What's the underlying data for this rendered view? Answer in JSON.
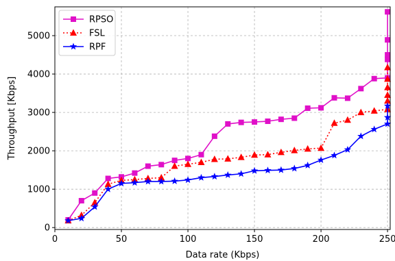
{
  "chart_data": {
    "type": "line",
    "xlabel": "Data rate (Kbps)",
    "ylabel": "Throughput [Kbps]",
    "xlim": [
      0,
      252
    ],
    "ylim": [
      -50,
      5750
    ],
    "xticks": [
      "0",
      "50",
      "100",
      "150",
      "200",
      "250"
    ],
    "xtick_values": [
      0,
      50,
      100,
      150,
      200,
      250
    ],
    "yticks": [
      "0",
      "1000",
      "2000",
      "3000",
      "4000",
      "5000"
    ],
    "ytick_values": [
      0,
      1000,
      2000,
      3000,
      4000,
      5000
    ],
    "grid": true,
    "legend_position": "top-left",
    "series": [
      {
        "name": "RPSO",
        "color": "#e010c8",
        "line_style": "solid",
        "marker": "square",
        "x": [
          10,
          20,
          30,
          40,
          50,
          60,
          70,
          80,
          90,
          100,
          110,
          120,
          130,
          140,
          150,
          160,
          170,
          180,
          190,
          200,
          210,
          220,
          230,
          240,
          250,
          250,
          250,
          250,
          250
        ],
        "y": [
          200,
          700,
          900,
          1280,
          1320,
          1420,
          1600,
          1640,
          1750,
          1800,
          1900,
          2380,
          2700,
          2740,
          2750,
          2770,
          2820,
          2850,
          3110,
          3120,
          3380,
          3370,
          3620,
          3880,
          3900,
          4380,
          4500,
          4890,
          5620
        ]
      },
      {
        "name": "FSL",
        "color": "#ff0000",
        "line_style": "dotted",
        "marker": "triangle",
        "x": [
          10,
          20,
          30,
          40,
          50,
          60,
          70,
          80,
          90,
          100,
          110,
          120,
          130,
          140,
          150,
          160,
          170,
          180,
          190,
          200,
          210,
          220,
          230,
          240,
          250,
          250,
          250,
          250,
          250,
          250
        ],
        "y": [
          180,
          320,
          650,
          1130,
          1230,
          1250,
          1280,
          1300,
          1600,
          1650,
          1700,
          1780,
          1790,
          1830,
          1890,
          1900,
          1960,
          2010,
          2050,
          2070,
          2720,
          2800,
          3000,
          3040,
          3080,
          3300,
          3450,
          3650,
          3870,
          4170
        ]
      },
      {
        "name": "RPF",
        "color": "#0000ff",
        "line_style": "solid",
        "marker": "star",
        "x": [
          10,
          20,
          30,
          40,
          50,
          60,
          70,
          80,
          90,
          100,
          110,
          120,
          130,
          140,
          150,
          160,
          170,
          180,
          190,
          200,
          210,
          220,
          230,
          240,
          250,
          250,
          250
        ],
        "y": [
          180,
          240,
          540,
          1000,
          1150,
          1170,
          1200,
          1200,
          1210,
          1240,
          1300,
          1330,
          1370,
          1400,
          1480,
          1490,
          1500,
          1540,
          1620,
          1760,
          1880,
          2030,
          2380,
          2560,
          2700,
          2870,
          3170
        ]
      }
    ]
  }
}
